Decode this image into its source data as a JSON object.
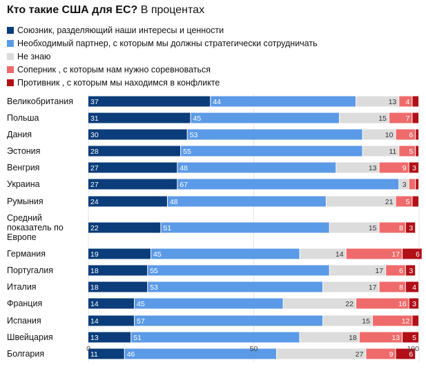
{
  "title": {
    "bold": "Кто такие США для ЕС?",
    "rest": "В процентах"
  },
  "legend": [
    {
      "label": "Союзник, разделяющий наши интересы и ценности",
      "color": "#0b3d7a"
    },
    {
      "label": "Необходимый партнер, с которым мы должны стратегически сотрудничать",
      "color": "#5b9ae6"
    },
    {
      "label": "Не знаю",
      "color": "#dcdcdc"
    },
    {
      "label": "Соперник , с которым нам нужно соревноваться",
      "color": "#ef6b6b"
    },
    {
      "label": "Противник , с которым мы находимся в конфликте",
      "color": "#b20f17"
    }
  ],
  "chart_data": {
    "type": "bar",
    "orientation": "horizontal",
    "stacked": true,
    "xlim": [
      0,
      100
    ],
    "x_ticks": [
      "0",
      "50",
      "100"
    ],
    "categories": [
      "Великобритания",
      "Польша",
      "Дания",
      "Эстония",
      "Венгрия",
      "Украина",
      "Румыния",
      "Средний показатель по Европе",
      "Германия",
      "Португалия",
      "Италия",
      "Франция",
      "Испания",
      "Швейцария",
      "Болгария"
    ],
    "series": [
      {
        "name": "Союзник, разделяющий наши интересы и ценности",
        "color": "#0b3d7a",
        "text_color": "#ffffff",
        "values": [
          37,
          31,
          30,
          28,
          27,
          27,
          24,
          22,
          19,
          18,
          18,
          14,
          14,
          13,
          11
        ]
      },
      {
        "name": "Необходимый партнер, с которым мы должны стратегически сотрудничать",
        "color": "#5b9ae6",
        "text_color": "#ffffff",
        "values": [
          44,
          45,
          53,
          55,
          48,
          67,
          48,
          51,
          45,
          55,
          53,
          45,
          57,
          51,
          46
        ]
      },
      {
        "name": "Не знаю",
        "color": "#dcdcdc",
        "text_color": "#333333",
        "values": [
          13,
          15,
          10,
          11,
          13,
          3,
          21,
          15,
          14,
          17,
          17,
          22,
          15,
          18,
          27
        ]
      },
      {
        "name": "Соперник , с которым нам нужно соревноваться",
        "color": "#ef6b6b",
        "text_color": "#ffffff",
        "values": [
          4,
          7,
          6,
          5,
          9,
          null,
          5,
          8,
          17,
          6,
          8,
          16,
          12,
          13,
          9
        ]
      },
      {
        "name": "Противник , с которым мы находимся в конфликте",
        "color": "#b20f17",
        "text_color": "#ffffff",
        "values": [
          null,
          null,
          null,
          null,
          3,
          null,
          null,
          3,
          6,
          3,
          4,
          3,
          null,
          5,
          6
        ]
      }
    ],
    "segment_values": [
      [
        37,
        44,
        13,
        4,
        2
      ],
      [
        31,
        45,
        15,
        7,
        2
      ],
      [
        30,
        53,
        10,
        6,
        1
      ],
      [
        28,
        55,
        11,
        5,
        1
      ],
      [
        27,
        48,
        13,
        9,
        3
      ],
      [
        27,
        67,
        3,
        2,
        1
      ],
      [
        24,
        48,
        21,
        5,
        2
      ],
      [
        22,
        51,
        15,
        8,
        3
      ],
      [
        19,
        45,
        14,
        17,
        6
      ],
      [
        18,
        55,
        17,
        6,
        3
      ],
      [
        18,
        53,
        17,
        8,
        4
      ],
      [
        14,
        45,
        22,
        16,
        3
      ],
      [
        14,
        57,
        15,
        12,
        2
      ],
      [
        13,
        51,
        18,
        13,
        5
      ],
      [
        11,
        46,
        27,
        9,
        6
      ]
    ]
  }
}
